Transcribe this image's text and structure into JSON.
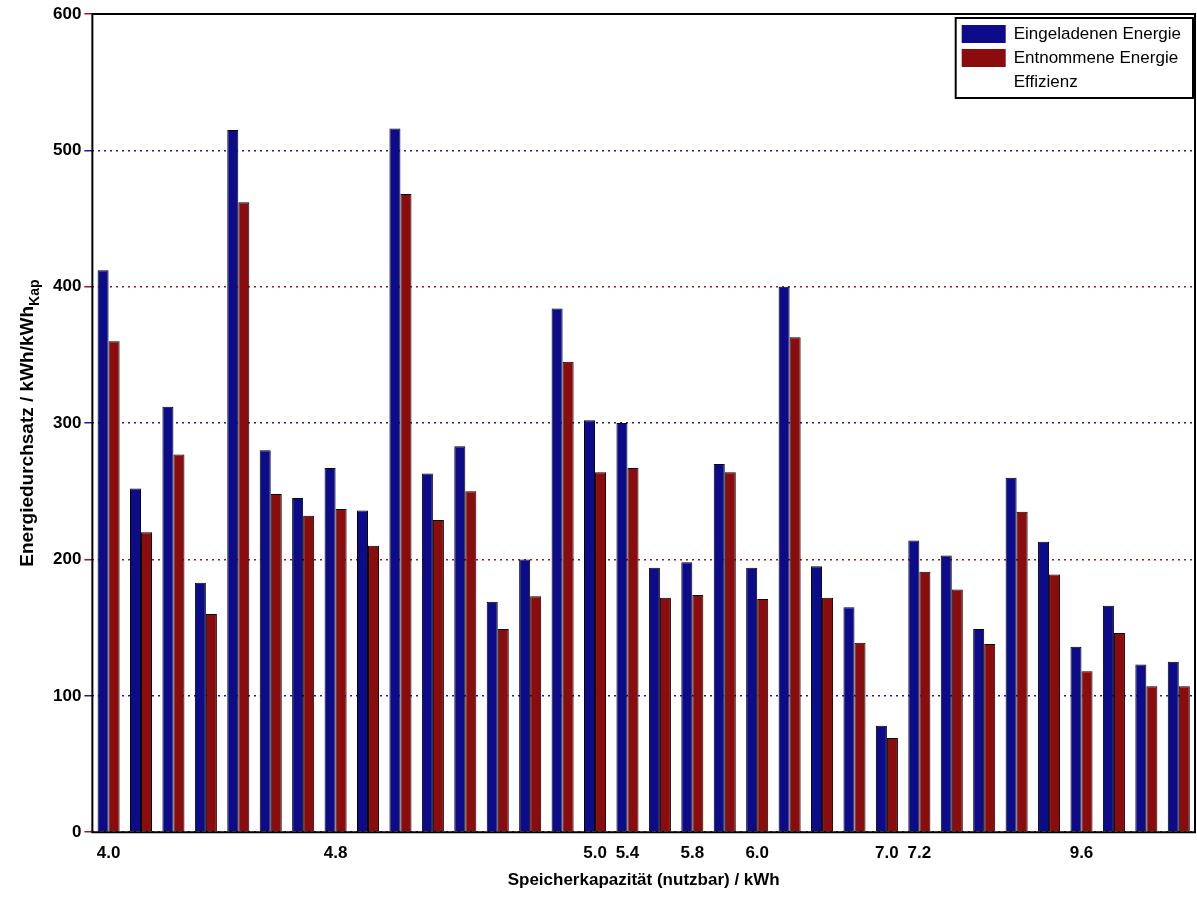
{
  "chart_data": {
    "type": "bar",
    "xlabel": "Speicherkapazität (nutzbar) / kWh",
    "ylabel": "Energiedurchsatz / kWh/kWh$_{Kap}$",
    "categories": [
      "4.0",
      null,
      null,
      null,
      null,
      null,
      null,
      "4.8",
      null,
      null,
      null,
      null,
      null,
      null,
      null,
      "5.0",
      "5.4",
      null,
      "5.8",
      null,
      "6.0",
      null,
      null,
      null,
      "7.0",
      "7.2",
      null,
      null,
      null,
      null,
      "9.6",
      null,
      null,
      null
    ],
    "series": [
      {
        "name": "Eingeladenen Energie",
        "color": "#0c0c8a",
        "values": [
          412,
          252,
          312,
          183,
          515,
          280,
          245,
          267,
          236,
          516,
          263,
          283,
          169,
          200,
          384,
          302,
          300,
          194,
          198,
          270,
          194,
          400,
          195,
          165,
          78,
          214,
          203,
          149,
          260,
          213,
          136,
          166,
          123,
          125
        ]
      },
      {
        "name": "Entnommene Energie",
        "color": "#8a0c0c",
        "values": [
          360,
          220,
          277,
          160,
          462,
          248,
          232,
          237,
          210,
          468,
          229,
          250,
          149,
          173,
          345,
          264,
          267,
          172,
          174,
          264,
          171,
          363,
          172,
          139,
          69,
          191,
          178,
          138,
          235,
          189,
          118,
          146,
          107,
          107
        ]
      },
      {
        "name": "Effizienz",
        "type": "line",
        "values": [
          null,
          null,
          null,
          null,
          null,
          null,
          null,
          null,
          null,
          null,
          null,
          null,
          null,
          null,
          null,
          null,
          null,
          null,
          null,
          null,
          null,
          null,
          null,
          null,
          null,
          null,
          null,
          null,
          null,
          null,
          null,
          null,
          null,
          null
        ]
      }
    ],
    "ylim": [
      0,
      600
    ],
    "yticks": [
      0,
      100,
      200,
      300,
      400,
      500,
      600
    ],
    "grid": "y",
    "legend": "top right"
  }
}
